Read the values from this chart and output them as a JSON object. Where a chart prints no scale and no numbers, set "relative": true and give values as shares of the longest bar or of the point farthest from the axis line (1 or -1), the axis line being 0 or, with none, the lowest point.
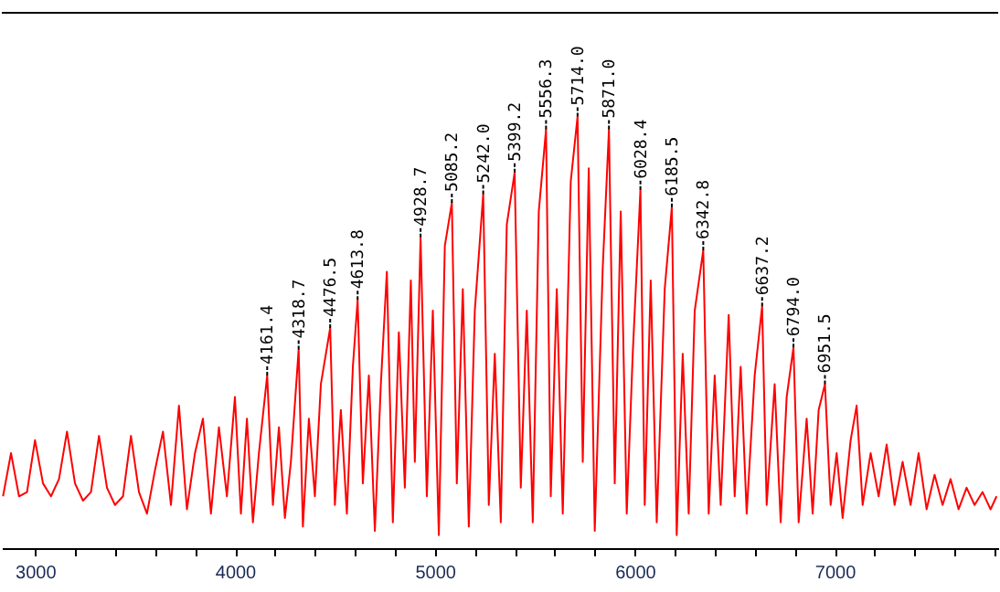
{
  "chart_data": {
    "type": "line",
    "relative": true,
    "marker": "none",
    "line_style": "solid",
    "grid": false,
    "tick_labels": "x",
    "xlim": [
      2834,
      7818
    ],
    "xticks": [
      3000,
      {
        "value": 3200,
        "label": null
      },
      {
        "value": 3400,
        "label": null
      },
      {
        "value": 3600,
        "label": null
      },
      {
        "value": 3800,
        "label": null
      },
      4000,
      {
        "value": 4200,
        "label": null
      },
      {
        "value": 4400,
        "label": null
      },
      {
        "value": 4600,
        "label": null
      },
      {
        "value": 4800,
        "label": null
      },
      5000,
      {
        "value": 5200,
        "label": null
      },
      {
        "value": 5400,
        "label": null
      },
      {
        "value": 5600,
        "label": null
      },
      {
        "value": 5800,
        "label": null
      },
      6000,
      {
        "value": 6200,
        "label": null
      },
      {
        "value": 6400,
        "label": null
      },
      {
        "value": 6600,
        "label": null
      },
      {
        "value": 6800,
        "label": null
      },
      7000,
      {
        "value": 7200,
        "label": null
      },
      {
        "value": 7400,
        "label": null
      },
      {
        "value": 7600,
        "label": null
      },
      {
        "value": 7800,
        "label": null
      }
    ],
    "series": [
      {
        "color": "#ff0000",
        "x": [
          2840,
          2880,
          2920,
          2960,
          3000,
          3040,
          3080,
          3120,
          3160,
          3200,
          3240,
          3280,
          3320,
          3360,
          3400,
          3440,
          3480,
          3520,
          3560,
          3600,
          3640,
          3680,
          3720,
          3760,
          3800,
          3840,
          3880,
          3920,
          3960,
          4000,
          4030,
          4060,
          4090,
          4120,
          4161.4,
          4190,
          4220,
          4250,
          4280,
          4318.7,
          4340,
          4370,
          4400,
          4430,
          4476.5,
          4500,
          4530,
          4560,
          4590,
          4613.8,
          4640,
          4670,
          4700,
          4730,
          4760,
          4790,
          4820,
          4850,
          4880,
          4900,
          4928.7,
          4960,
          4990,
          5020,
          5050,
          5085.2,
          5110,
          5140,
          5170,
          5200,
          5242.0,
          5270,
          5300,
          5330,
          5360,
          5399.2,
          5430,
          5460,
          5490,
          5520,
          5556.3,
          5580,
          5610,
          5640,
          5680,
          5714.0,
          5740,
          5770,
          5800,
          5840,
          5871.0,
          5900,
          5930,
          5960,
          5990,
          6028.4,
          6050,
          6080,
          6110,
          6150,
          6185.5,
          6210,
          6240,
          6270,
          6300,
          6342.8,
          6370,
          6400,
          6430,
          6470,
          6500,
          6530,
          6560,
          6600,
          6637.2,
          6660,
          6700,
          6730,
          6760,
          6794.0,
          6820,
          6860,
          6890,
          6920,
          6951.5,
          6980,
          7010,
          7040,
          7080,
          7110,
          7140,
          7180,
          7220,
          7260,
          7300,
          7340,
          7380,
          7420,
          7460,
          7500,
          7540,
          7580,
          7620,
          7660,
          7700,
          7740,
          7780,
          7810
        ],
        "values": [
          0.12,
          0.22,
          0.12,
          0.13,
          0.25,
          0.15,
          0.12,
          0.16,
          0.27,
          0.15,
          0.11,
          0.13,
          0.26,
          0.14,
          0.1,
          0.12,
          0.26,
          0.13,
          0.08,
          0.18,
          0.27,
          0.1,
          0.33,
          0.09,
          0.22,
          0.3,
          0.08,
          0.28,
          0.12,
          0.35,
          0.08,
          0.3,
          0.06,
          0.22,
          0.4,
          0.1,
          0.28,
          0.07,
          0.2,
          0.46,
          0.05,
          0.3,
          0.12,
          0.38,
          0.51,
          0.1,
          0.32,
          0.08,
          0.42,
          0.575,
          0.15,
          0.4,
          0.04,
          0.38,
          0.64,
          0.06,
          0.5,
          0.14,
          0.62,
          0.2,
          0.72,
          0.12,
          0.55,
          0.03,
          0.7,
          0.8,
          0.15,
          0.6,
          0.05,
          0.55,
          0.82,
          0.1,
          0.45,
          0.06,
          0.75,
          0.87,
          0.14,
          0.55,
          0.06,
          0.78,
          0.97,
          0.12,
          0.6,
          0.08,
          0.85,
          1.0,
          0.2,
          0.88,
          0.04,
          0.65,
          0.97,
          0.15,
          0.78,
          0.08,
          0.45,
          0.83,
          0.1,
          0.62,
          0.06,
          0.6,
          0.79,
          0.03,
          0.45,
          0.08,
          0.55,
          0.69,
          0.08,
          0.4,
          0.1,
          0.54,
          0.12,
          0.42,
          0.08,
          0.4,
          0.56,
          0.1,
          0.38,
          0.06,
          0.35,
          0.465,
          0.06,
          0.3,
          0.08,
          0.32,
          0.38,
          0.1,
          0.22,
          0.07,
          0.25,
          0.33,
          0.1,
          0.22,
          0.12,
          0.24,
          0.1,
          0.2,
          0.1,
          0.22,
          0.09,
          0.17,
          0.1,
          0.16,
          0.09,
          0.14,
          0.1,
          0.13,
          0.09,
          0.12
        ]
      }
    ],
    "annotations": [
      {
        "text": "4161.4",
        "x": 4161.4,
        "y": 0.4
      },
      {
        "text": "4318.7",
        "x": 4318.7,
        "y": 0.46
      },
      {
        "text": "4476.5",
        "x": 4476.5,
        "y": 0.51
      },
      {
        "text": "4613.8",
        "x": 4613.8,
        "y": 0.575
      },
      {
        "text": "4928.7",
        "x": 4928.7,
        "y": 0.72
      },
      {
        "text": "5085.2",
        "x": 5085.2,
        "y": 0.8
      },
      {
        "text": "5242.0",
        "x": 5242.0,
        "y": 0.82
      },
      {
        "text": "5399.2",
        "x": 5399.2,
        "y": 0.87
      },
      {
        "text": "5556.3",
        "x": 5556.3,
        "y": 0.97
      },
      {
        "text": "5714.0",
        "x": 5714.0,
        "y": 1.0
      },
      {
        "text": "5871.0",
        "x": 5871.0,
        "y": 0.97
      },
      {
        "text": "6028.4",
        "x": 6028.4,
        "y": 0.83
      },
      {
        "text": "6185.5",
        "x": 6185.5,
        "y": 0.79
      },
      {
        "text": "6342.8",
        "x": 6342.8,
        "y": 0.69
      },
      {
        "text": "6637.2",
        "x": 6637.2,
        "y": 0.56
      },
      {
        "text": "6794.0",
        "x": 6794.0,
        "y": 0.465
      },
      {
        "text": "6951.5",
        "x": 6951.5,
        "y": 0.38
      }
    ]
  }
}
